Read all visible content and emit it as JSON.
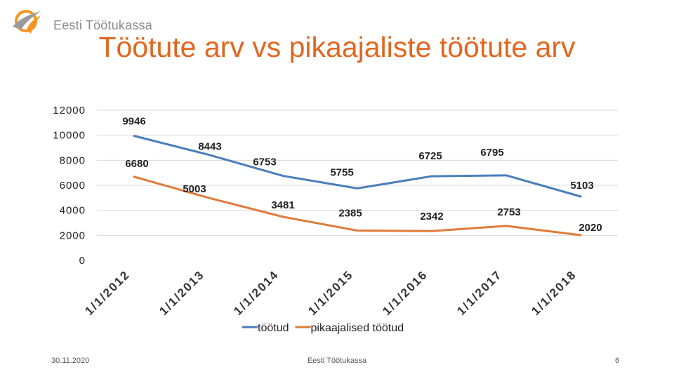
{
  "header": {
    "logo_text": "Eesti Töötukassa",
    "logo_colors": [
      "#f7941d",
      "#9a9a9a"
    ]
  },
  "chart_data": {
    "type": "line",
    "title": "Töötute arv vs pikaajaliste töötute arv",
    "categories": [
      "1/1/2012",
      "1/1/2013",
      "1/1/2014",
      "1/1/2015",
      "1/1/2016",
      "1/1/2017",
      "1/1/2018"
    ],
    "series": [
      {
        "name": "töötud",
        "values": [
          9946,
          8443,
          6753,
          5755,
          6725,
          6795,
          5103
        ],
        "color": "#4a7ebb"
      },
      {
        "name": "pikaajalised töötud",
        "values": [
          6680,
          5003,
          3481,
          2385,
          2342,
          2753,
          2020
        ],
        "color": "#e07b39"
      }
    ],
    "y_ticks": [
      "0",
      "2000",
      "4000",
      "6000",
      "8000",
      "10000",
      "12000"
    ],
    "ylim": [
      0,
      12000
    ],
    "grid": "horizontal",
    "legend": "bottom",
    "title_color": "#e2661f"
  },
  "footer": {
    "date": "30.11.2020",
    "center": "Eesti Töötukassa",
    "page": "6"
  }
}
